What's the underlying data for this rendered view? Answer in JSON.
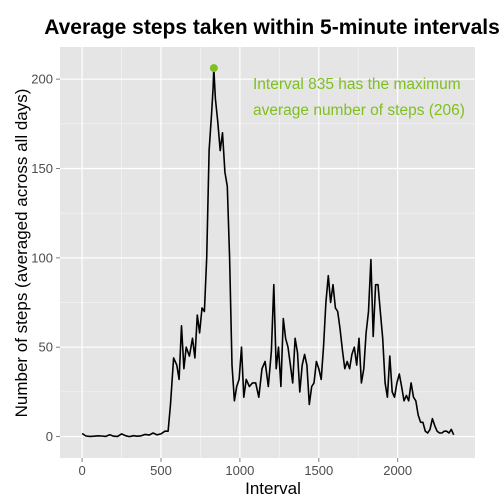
{
  "chart_data": {
    "type": "line",
    "title": "Average steps taken within 5-minute intervals",
    "xlabel": "Interval",
    "ylabel": "Number of steps (averaged across all days)",
    "xlim": [
      -140,
      2490
    ],
    "ylim": [
      -12,
      218
    ],
    "x_ticks": [
      0,
      500,
      1000,
      1500,
      2000
    ],
    "y_ticks": [
      0,
      50,
      100,
      150,
      200
    ],
    "x_tick_labels": [
      "0",
      "500",
      "1000",
      "1500",
      "2000"
    ],
    "y_tick_labels": [
      "0",
      "50",
      "100",
      "150",
      "200"
    ],
    "grid": true,
    "series": [
      {
        "color": "#000000",
        "x": [
          0,
          25,
          50,
          75,
          100,
          125,
          150,
          175,
          200,
          225,
          250,
          275,
          300,
          325,
          350,
          375,
          400,
          425,
          450,
          475,
          500,
          525,
          545,
          560,
          580,
          600,
          615,
          630,
          645,
          660,
          680,
          700,
          715,
          730,
          745,
          760,
          775,
          790,
          805,
          820,
          830,
          835,
          845,
          860,
          875,
          890,
          905,
          920,
          935,
          950,
          965,
          980,
          995,
          1010,
          1025,
          1040,
          1060,
          1080,
          1100,
          1120,
          1140,
          1160,
          1180,
          1200,
          1215,
          1230,
          1245,
          1260,
          1275,
          1290,
          1305,
          1320,
          1335,
          1350,
          1365,
          1380,
          1395,
          1410,
          1425,
          1440,
          1455,
          1470,
          1485,
          1500,
          1515,
          1530,
          1545,
          1560,
          1575,
          1590,
          1605,
          1620,
          1635,
          1650,
          1665,
          1680,
          1695,
          1710,
          1725,
          1740,
          1755,
          1770,
          1785,
          1800,
          1815,
          1830,
          1845,
          1860,
          1875,
          1890,
          1905,
          1920,
          1935,
          1950,
          1965,
          1980,
          1995,
          2010,
          2025,
          2040,
          2055,
          2070,
          2085,
          2100,
          2115,
          2130,
          2145,
          2160,
          2175,
          2190,
          2205,
          2220,
          2235,
          2250,
          2265,
          2280,
          2295,
          2310,
          2325,
          2340,
          2355
        ],
        "values": [
          1.7,
          0.3,
          0.1,
          0.2,
          0.4,
          0.3,
          0.1,
          1.0,
          0.2,
          0.1,
          1.5,
          0.5,
          0,
          0.5,
          0.2,
          0.4,
          1.2,
          0.8,
          2.0,
          1.0,
          1.5,
          3.0,
          3.0,
          18.0,
          44.0,
          40.0,
          32.0,
          62.0,
          38.0,
          50.0,
          45.0,
          55.0,
          44.0,
          68.0,
          58.0,
          72.0,
          70.0,
          100.0,
          160.0,
          180.0,
          195.0,
          206.2,
          189.0,
          176.0,
          160.0,
          170.0,
          148.0,
          140.0,
          100.0,
          40.0,
          20.0,
          28.0,
          32.0,
          50.0,
          22.0,
          32.0,
          28.0,
          30.0,
          30.0,
          22.0,
          38.0,
          42.0,
          28.0,
          48.0,
          85.0,
          38.0,
          50.0,
          28.0,
          66.0,
          55.0,
          50.0,
          40.0,
          30.0,
          55.0,
          47.0,
          25.0,
          40.0,
          46.0,
          40.0,
          18.0,
          28.0,
          30.0,
          42.0,
          38.0,
          32.0,
          50.0,
          75.0,
          90.0,
          75.0,
          85.0,
          72.0,
          70.0,
          60.0,
          48.0,
          38.0,
          42.0,
          38.0,
          46.0,
          50.0,
          40.0,
          55.0,
          30.0,
          38.0,
          58.0,
          70.0,
          99.0,
          56.0,
          85.0,
          85.0,
          70.0,
          55.0,
          30.0,
          22.0,
          45.0,
          25.0,
          22.0,
          30.0,
          35.0,
          28.0,
          20.0,
          23.0,
          20.0,
          30.0,
          22.0,
          20.0,
          12.0,
          8.0,
          8.0,
          3.0,
          2.0,
          4.0,
          10.0,
          6.0,
          3.0,
          2.0,
          2.0,
          3.0,
          3.0,
          2.0,
          4.0,
          1.0
        ]
      }
    ],
    "max_point": {
      "x": 835,
      "y": 206.2,
      "color": "#7fbf20"
    },
    "annotation": {
      "lines": [
        "Interval 835 has the maximum",
        "average number of steps (206)"
      ],
      "color": "#7fbf20"
    },
    "panel_background": "#e5e5e5",
    "grid_color": "#ffffff"
  }
}
